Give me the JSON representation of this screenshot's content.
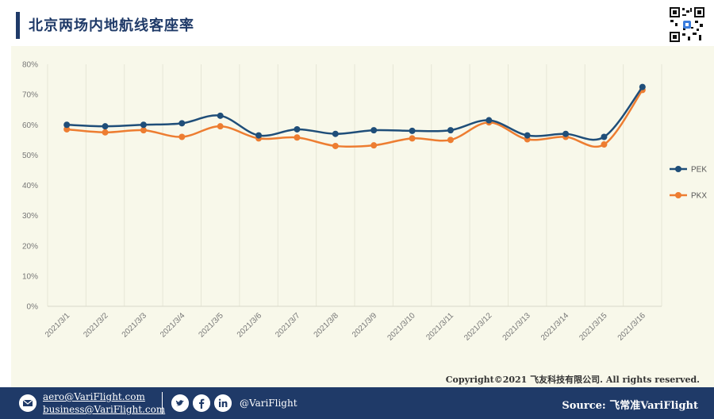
{
  "header": {
    "title": "北京两场内地航线客座率"
  },
  "chart_data": {
    "type": "line",
    "title": "北京两场内地航线客座率",
    "categories": [
      "2021/3/1",
      "2021/3/2",
      "2021/3/3",
      "2021/3/4",
      "2021/3/5",
      "2021/3/6",
      "2021/3/7",
      "2021/3/8",
      "2021/3/9",
      "2021/3/10",
      "2021/3/11",
      "2021/3/12",
      "2021/3/13",
      "2021/3/14",
      "2021/3/15",
      "2021/3/16"
    ],
    "series": [
      {
        "name": "PEK",
        "color": "#1f4e79",
        "values": [
          60,
          59.5,
          60,
          60.5,
          63,
          56.5,
          58.5,
          57,
          58.2,
          58,
          58.2,
          61.5,
          56.5,
          57,
          56,
          72.5
        ]
      },
      {
        "name": "PKX",
        "color": "#ed7d31",
        "values": [
          58.5,
          57.5,
          58.2,
          56,
          59.5,
          55.5,
          55.8,
          53,
          53.2,
          55.5,
          55,
          60.8,
          55.2,
          56,
          53.5,
          71.5
        ]
      }
    ],
    "y_ticks": [
      "0%",
      "10%",
      "20%",
      "30%",
      "40%",
      "50%",
      "60%",
      "70%",
      "80%"
    ],
    "ylim": [
      0,
      80
    ],
    "grid": "vertical",
    "legend_position": "right"
  },
  "footer": {
    "copyright": "Copyright©2021 飞友科技有限公司. All rights reserved.",
    "email1": "aero@VariFlight.com",
    "email2": "business@VariFlight.com",
    "handle": "@VariFlight",
    "source": "Source: 飞常准VariFlight",
    "icons": [
      "mail-icon",
      "twitter-icon",
      "facebook-icon",
      "linkedin-icon"
    ]
  }
}
